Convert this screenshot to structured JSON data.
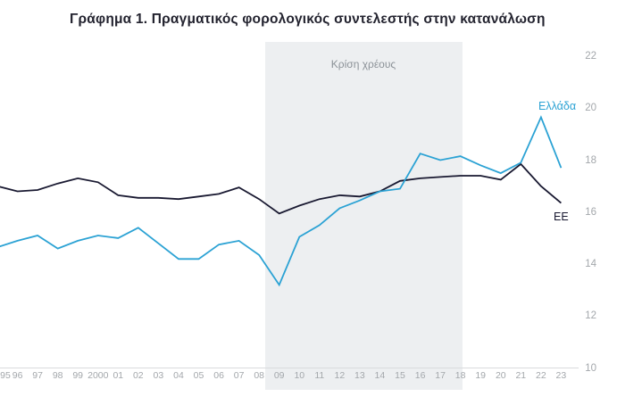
{
  "title": "Γράφημα 1. Πραγματικός φορολογικός συντελεστής στην κατανάλωση",
  "colors": {
    "greece_line": "#2ba2d4",
    "eu_line": "#191931",
    "band": "#edeff1",
    "axis_line": "#d9dbdd",
    "tick_text": "#a3a7ab",
    "annotation_text": "#8b9197",
    "title_text": "#23232f"
  },
  "chart_data": {
    "type": "line",
    "title": "Γράφημα 1. Πραγματικός φορολογικός συντελεστής στην κατανάλωση",
    "categories": [
      "95",
      "96",
      "97",
      "98",
      "99",
      "2000",
      "01",
      "02",
      "03",
      "04",
      "05",
      "06",
      "07",
      "08",
      "09",
      "10",
      "11",
      "12",
      "13",
      "14",
      "15",
      "16",
      "17",
      "18",
      "19",
      "20",
      "21",
      "22",
      "23"
    ],
    "series": [
      {
        "name": "Ελλάδα",
        "color": "#2ba2d4",
        "values": [
          14.65,
          14.9,
          15.1,
          14.6,
          14.9,
          15.1,
          15.0,
          15.4,
          14.8,
          14.2,
          14.2,
          14.75,
          14.9,
          14.35,
          13.2,
          15.05,
          15.5,
          16.15,
          16.45,
          16.8,
          16.9,
          18.25,
          18.0,
          18.15,
          17.8,
          17.5,
          17.9,
          19.65,
          17.7
        ]
      },
      {
        "name": "ΕΕ",
        "color": "#191931",
        "values": [
          17.0,
          16.8,
          16.85,
          17.1,
          17.3,
          17.15,
          16.65,
          16.55,
          16.55,
          16.5,
          16.6,
          16.7,
          16.95,
          16.5,
          15.95,
          16.25,
          16.5,
          16.65,
          16.6,
          16.8,
          17.2,
          17.3,
          17.35,
          17.4,
          17.4,
          17.25,
          17.85,
          17.0,
          16.35
        ]
      }
    ],
    "ylim": [
      10,
      22
    ],
    "yticks": [
      22,
      20,
      18,
      16,
      14,
      12,
      10
    ],
    "ytick_side": "right",
    "grid": false,
    "legend_position": "end-of-line-labels",
    "shaded_region": {
      "label": "Κρίση χρέους",
      "from_category": "08",
      "to_category": "18"
    }
  }
}
